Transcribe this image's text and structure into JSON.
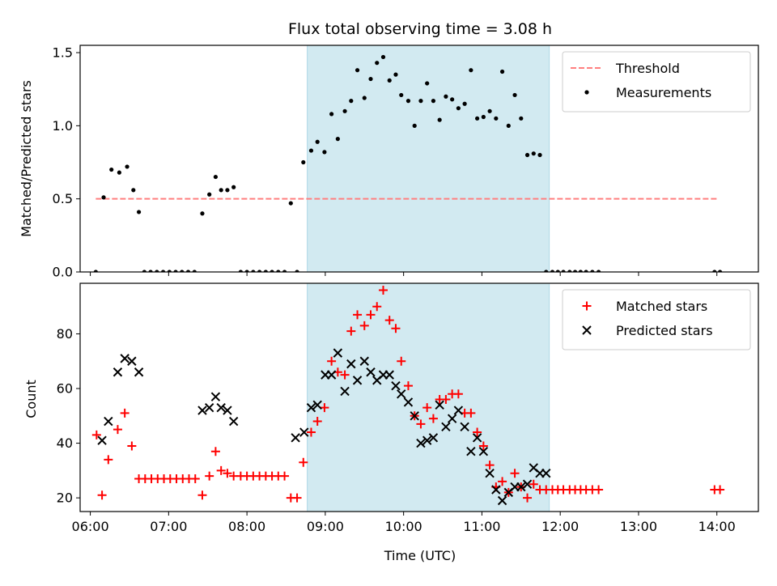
{
  "chart_data": {
    "title": "Flux total observing time = 3.08 h",
    "xlabel": "Time (UTC)",
    "x_units": "hours UTC",
    "xticks": [
      6,
      7,
      8,
      9,
      10,
      11,
      12,
      13,
      14
    ],
    "xtick_labels": [
      "06:00",
      "07:00",
      "08:00",
      "09:00",
      "10:00",
      "11:00",
      "12:00",
      "13:00",
      "14:00"
    ],
    "xlim": [
      5.87,
      14.53
    ],
    "shaded_region": [
      8.77,
      11.86
    ],
    "shade_color": "#add8e6",
    "panels": [
      {
        "type": "scatter",
        "ylabel": "Matched/Predicted stars",
        "ylim": [
          0,
          1.55
        ],
        "yticks": [
          0.0,
          0.5,
          1.0,
          1.5
        ],
        "ytick_labels": [
          "0.0",
          "0.5",
          "1.0",
          "1.5"
        ],
        "legend_position": "top-right",
        "threshold": {
          "name": "Threshold",
          "value": 0.5,
          "x_range": [
            6.07,
            14.0
          ],
          "color": "#ff7f7f"
        },
        "series": [
          {
            "name": "Measurements",
            "marker": "dot",
            "color": "#000000",
            "x": [
              6.07,
              6.17,
              6.27,
              6.37,
              6.47,
              6.55,
              6.62,
              6.69,
              6.77,
              6.85,
              6.93,
              7.01,
              7.09,
              7.17,
              7.25,
              7.33,
              7.43,
              7.52,
              7.6,
              7.67,
              7.75,
              7.83,
              7.92,
              8.0,
              8.08,
              8.16,
              8.24,
              8.32,
              8.4,
              8.48,
              8.56,
              8.64,
              8.72,
              8.82,
              8.9,
              8.99,
              9.08,
              9.16,
              9.25,
              9.33,
              9.41,
              9.5,
              9.58,
              9.66,
              9.74,
              9.82,
              9.9,
              9.97,
              10.06,
              10.14,
              10.22,
              10.3,
              10.38,
              10.46,
              10.54,
              10.62,
              10.7,
              10.78,
              10.86,
              10.94,
              11.02,
              11.1,
              11.18,
              11.26,
              11.34,
              11.42,
              11.5,
              11.58,
              11.66,
              11.74,
              11.82,
              11.9,
              11.97,
              12.04,
              12.12,
              12.19,
              12.26,
              12.33,
              12.41,
              12.49,
              13.97,
              14.04
            ],
            "y": [
              0,
              0.51,
              0.7,
              0.68,
              0.72,
              0.56,
              0.41,
              0,
              0,
              0,
              0,
              0,
              0,
              0,
              0,
              0,
              0.4,
              0.53,
              0.65,
              0.56,
              0.56,
              0.58,
              0,
              0,
              0,
              0,
              0,
              0,
              0,
              0,
              0.47,
              0,
              0.75,
              0.83,
              0.89,
              0.82,
              1.08,
              0.91,
              1.1,
              1.17,
              1.38,
              1.19,
              1.32,
              1.43,
              1.47,
              1.31,
              1.35,
              1.21,
              1.17,
              1.0,
              1.17,
              1.29,
              1.17,
              1.04,
              1.2,
              1.18,
              1.12,
              1.15,
              1.38,
              1.05,
              1.06,
              1.1,
              1.05,
              1.37,
              1.0,
              1.21,
              1.05,
              0.8,
              0.81,
              0.8,
              0,
              0,
              0,
              0,
              0,
              0,
              0,
              0,
              0,
              0,
              0,
              0
            ]
          }
        ]
      },
      {
        "type": "scatter",
        "ylabel": "Count",
        "ylim": [
          15,
          98.5
        ],
        "yticks": [
          20,
          40,
          60,
          80
        ],
        "ytick_labels": [
          "20",
          "40",
          "60",
          "80"
        ],
        "legend_position": "top-right",
        "series": [
          {
            "name": "Matched stars",
            "marker": "plus",
            "color": "#ff0000",
            "x": [
              6.08,
              6.15,
              6.23,
              6.35,
              6.44,
              6.53,
              6.62,
              6.7,
              6.78,
              6.86,
              6.94,
              7.02,
              7.1,
              7.18,
              7.26,
              7.34,
              7.43,
              7.52,
              7.6,
              7.67,
              7.75,
              7.83,
              7.92,
              8.0,
              8.08,
              8.16,
              8.24,
              8.32,
              8.4,
              8.48,
              8.56,
              8.64,
              8.72,
              8.82,
              8.9,
              8.99,
              9.08,
              9.16,
              9.25,
              9.33,
              9.41,
              9.5,
              9.58,
              9.66,
              9.74,
              9.82,
              9.9,
              9.97,
              10.06,
              10.14,
              10.22,
              10.3,
              10.38,
              10.46,
              10.54,
              10.62,
              10.7,
              10.78,
              10.86,
              10.94,
              11.02,
              11.1,
              11.18,
              11.26,
              11.34,
              11.42,
              11.5,
              11.58,
              11.66,
              11.74,
              11.82,
              11.9,
              11.97,
              12.04,
              12.12,
              12.19,
              12.26,
              12.33,
              12.41,
              12.49,
              13.97,
              14.04
            ],
            "y": [
              43,
              21,
              34,
              45,
              51,
              39,
              27,
              27,
              27,
              27,
              27,
              27,
              27,
              27,
              27,
              27,
              21,
              28,
              37,
              30,
              29,
              28,
              28,
              28,
              28,
              28,
              28,
              28,
              28,
              28,
              20,
              20,
              33,
              44,
              48,
              53,
              70,
              66,
              65,
              81,
              87,
              83,
              87,
              90,
              96,
              85,
              82,
              70,
              61,
              50,
              47,
              53,
              49,
              56,
              56,
              58,
              58,
              51,
              51,
              44,
              39,
              32,
              24,
              26,
              22,
              29,
              24,
              20,
              25,
              23,
              23,
              23,
              23,
              23,
              23,
              23,
              23,
              23,
              23,
              23,
              23,
              23
            ]
          },
          {
            "name": "Predicted stars",
            "marker": "x",
            "color": "#000000",
            "x": [
              6.15,
              6.23,
              6.35,
              6.44,
              6.53,
              6.62,
              7.43,
              7.52,
              7.6,
              7.67,
              7.75,
              7.83,
              8.62,
              8.73,
              8.82,
              8.9,
              9.0,
              9.08,
              9.16,
              9.25,
              9.33,
              9.41,
              9.5,
              9.58,
              9.66,
              9.74,
              9.82,
              9.9,
              9.97,
              10.06,
              10.14,
              10.22,
              10.3,
              10.38,
              10.46,
              10.54,
              10.62,
              10.7,
              10.78,
              10.86,
              10.94,
              11.02,
              11.1,
              11.18,
              11.26,
              11.34,
              11.42,
              11.5,
              11.58,
              11.66,
              11.74,
              11.82
            ],
            "y": [
              41,
              48,
              66,
              71,
              70,
              66,
              52,
              53,
              57,
              53,
              52,
              48,
              42,
              44,
              53,
              54,
              65,
              65,
              73,
              59,
              69,
              63,
              70,
              66,
              63,
              65,
              65,
              61,
              58,
              55,
              50,
              40,
              41,
              42,
              54,
              46,
              49,
              52,
              46,
              37,
              42,
              37,
              29,
              23,
              19,
              22,
              24,
              24,
              25,
              31,
              29,
              29
            ]
          }
        ]
      }
    ]
  }
}
